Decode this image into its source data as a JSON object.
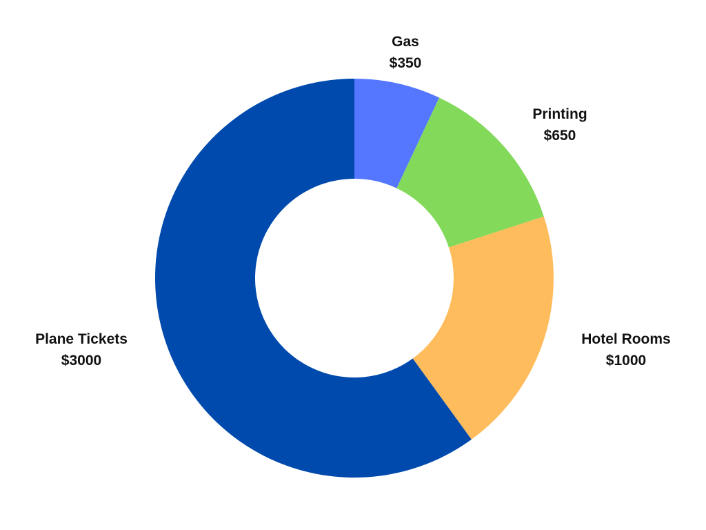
{
  "chart_data": {
    "type": "pie",
    "variant": "donut",
    "title": "",
    "start_angle_deg": 0,
    "direction": "clockwise",
    "slices": [
      {
        "label": "Gas",
        "value": 350,
        "value_label": "$350",
        "color": "#5577ff"
      },
      {
        "label": "Printing",
        "value": 650,
        "value_label": "$650",
        "color": "#82d95a"
      },
      {
        "label": "Hotel Rooms",
        "value": 1000,
        "value_label": "$1000",
        "color": "#ffbc5c"
      },
      {
        "label": "Plane Tickets",
        "value": 3000,
        "value_label": "$3000",
        "color": "#004aad"
      }
    ],
    "legend": "none",
    "labels_position": "outside"
  }
}
